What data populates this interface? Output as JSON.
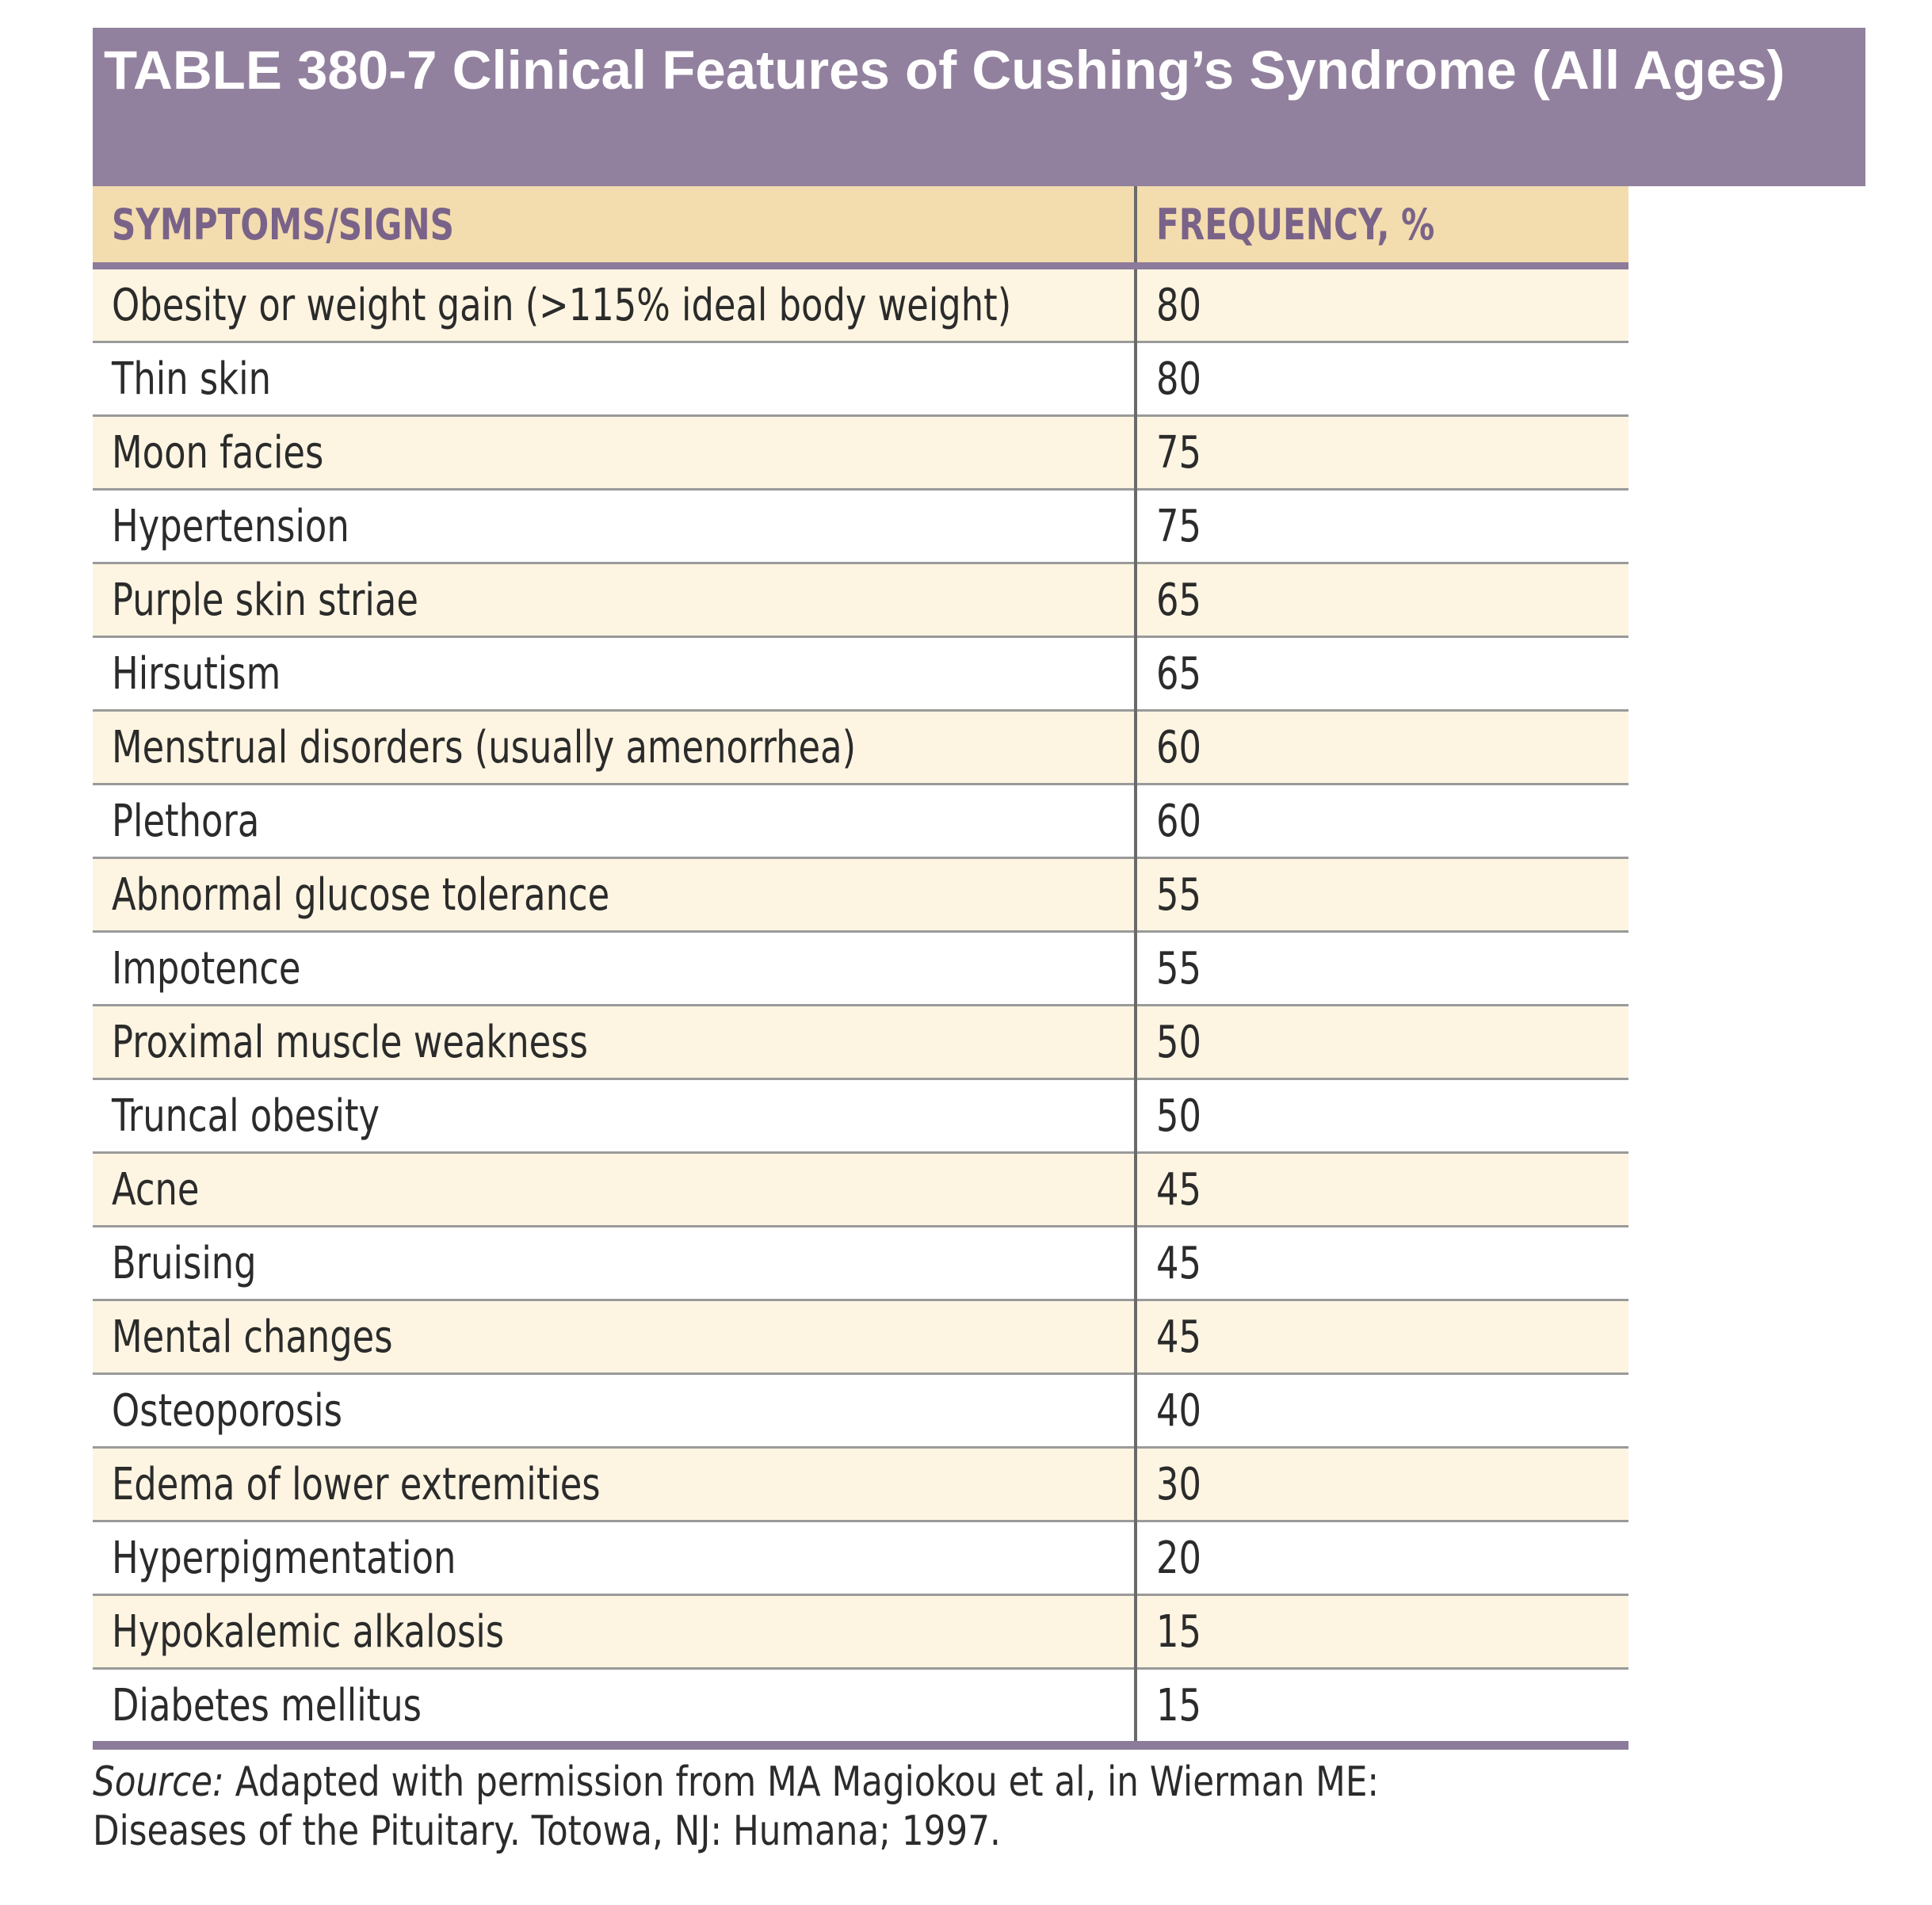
{
  "title": "TABLE 380-7 Clinical Features of Cushing’s Syndrome (All Ages)",
  "header": {
    "col1": "SYMPTOMS/SIGNS",
    "col2": "FREQUENCY, %"
  },
  "rows": [
    {
      "symptom": "Obesity or weight gain (>115% ideal body weight)",
      "frequency": "80"
    },
    {
      "symptom": "Thin skin",
      "frequency": "80"
    },
    {
      "symptom": "Moon facies",
      "frequency": "75"
    },
    {
      "symptom": "Hypertension",
      "frequency": "75"
    },
    {
      "symptom": "Purple skin striae",
      "frequency": "65"
    },
    {
      "symptom": "Hirsutism",
      "frequency": "65"
    },
    {
      "symptom": "Menstrual disorders (usually amenorrhea)",
      "frequency": "60"
    },
    {
      "symptom": "Plethora",
      "frequency": "60"
    },
    {
      "symptom": "Abnormal glucose tolerance",
      "frequency": "55"
    },
    {
      "symptom": "Impotence",
      "frequency": "55"
    },
    {
      "symptom": "Proximal muscle weakness",
      "frequency": "50"
    },
    {
      "symptom": "Truncal obesity",
      "frequency": "50"
    },
    {
      "symptom": "Acne",
      "frequency": "45"
    },
    {
      "symptom": "Bruising",
      "frequency": "45"
    },
    {
      "symptom": "Mental changes",
      "frequency": "45"
    },
    {
      "symptom": "Osteoporosis",
      "frequency": "40"
    },
    {
      "symptom": "Edema of lower extremities",
      "frequency": "30"
    },
    {
      "symptom": "Hyperpigmentation",
      "frequency": "20"
    },
    {
      "symptom": "Hypokalemic alkalosis",
      "frequency": "15"
    },
    {
      "symptom": "Diabetes mellitus",
      "frequency": "15"
    }
  ],
  "source": {
    "label": "Source:",
    "line1": " Adapted with permission from MA Magiokou et al, in Wierman ME:",
    "line2": "Diseases of the Pituitary. Totowa, NJ: Humana; 1997."
  },
  "colors": {
    "title_bar": "#92819e",
    "header_bg": "#f3dcae",
    "header_text": "#7a6388",
    "stripe": "#fdf5e2",
    "rule": "#8c7b9b"
  }
}
